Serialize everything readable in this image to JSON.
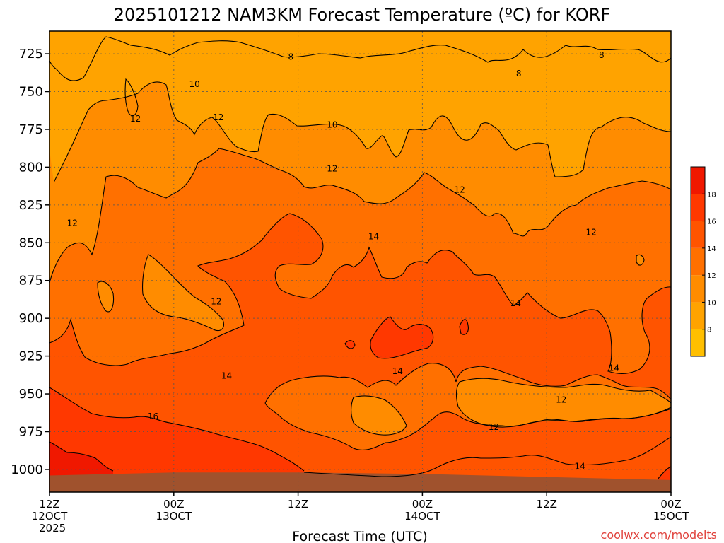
{
  "chart_data": {
    "type": "heatmap",
    "title": "2025101212 NAM3KM Forecast Temperature (ºC) for KORF",
    "xlabel": "Forecast Time (UTC)",
    "ylabel": "",
    "credit": "coolwx.com/modelts",
    "y_axis": {
      "units": "hPa",
      "inverted": true,
      "range": [
        710,
        1015
      ],
      "ticks": [
        725,
        750,
        775,
        800,
        825,
        850,
        875,
        900,
        925,
        950,
        975,
        1000
      ],
      "tick_labels": [
        "725",
        "750",
        "775",
        "800",
        "825",
        "850",
        "875",
        "900",
        "925",
        "950",
        "975",
        "1000"
      ]
    },
    "x_axis": {
      "units": "forecast hours",
      "range": [
        0,
        60
      ],
      "ticks": [
        {
          "hour": 0,
          "line1": "12Z",
          "line2": "12OCT",
          "line3": "2025"
        },
        {
          "hour": 12,
          "line1": "00Z",
          "line2": "13OCT",
          "line3": ""
        },
        {
          "hour": 24,
          "line1": "12Z",
          "line2": "",
          "line3": ""
        },
        {
          "hour": 36,
          "line1": "00Z",
          "line2": "14OCT",
          "line3": ""
        },
        {
          "hour": 48,
          "line1": "12Z",
          "line2": "",
          "line3": ""
        },
        {
          "hour": 60,
          "line1": "00Z",
          "line2": "15OCT",
          "line3": ""
        }
      ]
    },
    "grid": true,
    "colorbar": {
      "placement": "right",
      "levels": [
        6,
        8,
        10,
        12,
        14,
        16,
        18,
        20
      ],
      "colors": [
        "#ffbf00",
        "#ffa300",
        "#ff8c00",
        "#ff7000",
        "#ff5400",
        "#ff3800",
        "#f01800"
      ],
      "tick_labels": [
        "8",
        "10",
        "12",
        "14",
        "16",
        "18"
      ]
    },
    "fill_colors": {
      "t6_8": "#ffbf00",
      "t8_10": "#ffa300",
      "t10_12": "#ff8c00",
      "t12_14": "#ff7000",
      "t14_16": "#ff5400",
      "t16_18": "#ff3800",
      "t18_20": "#f01800",
      "ground": "#a0522d"
    },
    "ground_surface": [
      {
        "hour": 0,
        "p": 1004
      },
      {
        "hour": 12,
        "p": 1002
      },
      {
        "hour": 24,
        "p": 1002
      },
      {
        "hour": 36,
        "p": 1003
      },
      {
        "hour": 48,
        "p": 1005
      },
      {
        "hour": 60,
        "p": 1007
      }
    ],
    "contour_labels": [
      {
        "text": "8",
        "hour": 23.3,
        "p": 727
      },
      {
        "text": "8",
        "hour": 45.3,
        "p": 738
      },
      {
        "text": "8",
        "hour": 53.3,
        "p": 726
      },
      {
        "text": "10",
        "hour": 14.0,
        "p": 745
      },
      {
        "text": "10",
        "hour": 27.3,
        "p": 772
      },
      {
        "text": "12",
        "hour": 8.3,
        "p": 768
      },
      {
        "text": "12",
        "hour": 16.3,
        "p": 767
      },
      {
        "text": "12",
        "hour": 27.3,
        "p": 801
      },
      {
        "text": "12",
        "hour": 39.6,
        "p": 815
      },
      {
        "text": "12",
        "hour": 2.2,
        "p": 837
      },
      {
        "text": "12",
        "hour": 52.3,
        "p": 843
      },
      {
        "text": "12",
        "hour": 16.1,
        "p": 889
      },
      {
        "text": "12",
        "hour": 49.4,
        "p": 954
      },
      {
        "text": "12",
        "hour": 42.9,
        "p": 972
      },
      {
        "text": "14",
        "hour": 31.3,
        "p": 846
      },
      {
        "text": "14",
        "hour": 45.0,
        "p": 890
      },
      {
        "text": "14",
        "hour": 17.1,
        "p": 938
      },
      {
        "text": "14",
        "hour": 33.6,
        "p": 935
      },
      {
        "text": "14",
        "hour": 54.5,
        "p": 933
      },
      {
        "text": "14",
        "hour": 51.2,
        "p": 998
      },
      {
        "text": "16",
        "hour": 10.0,
        "p": 965
      }
    ]
  }
}
